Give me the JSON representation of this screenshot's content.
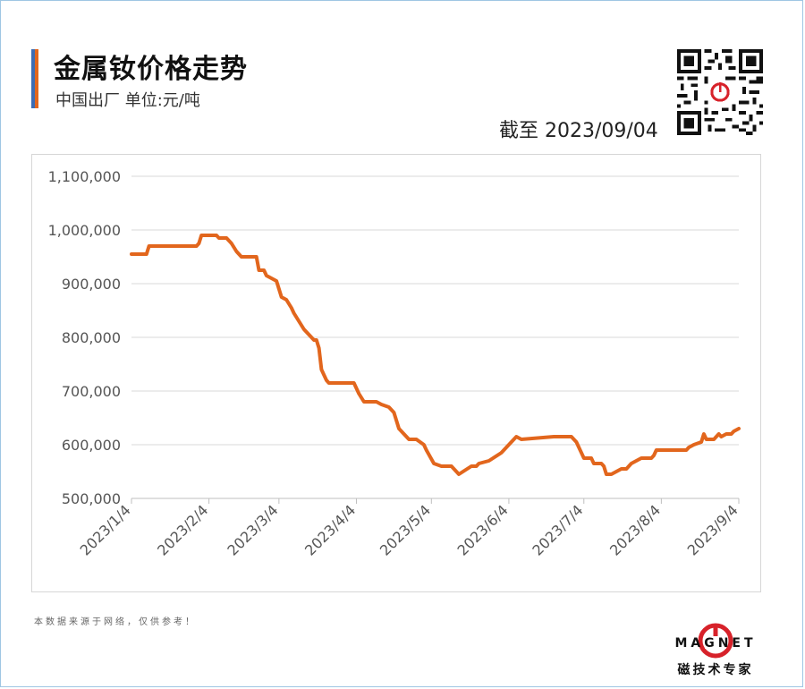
{
  "header": {
    "title": "金属钕价格走势",
    "subtitle": "中国出厂  单位:元/吨",
    "date": "截至 2023/09/04"
  },
  "footer": {
    "note": "本数据来源于网络，仅供参考！",
    "logo_text": "MAGNET",
    "logo_cn": "磁技术专家"
  },
  "colors": {
    "line": "#e2661d",
    "bar_blue": "#3d6cb3",
    "bar_orange": "#e2661d",
    "logo_red": "#d7222a"
  },
  "chart_data": {
    "type": "line",
    "title": "",
    "xlabel": "",
    "ylabel": "",
    "ylim": [
      500000,
      1100000
    ],
    "y_ticks": [
      500000,
      600000,
      700000,
      800000,
      900000,
      1000000,
      1100000
    ],
    "y_tick_labels": [
      "500,000",
      "600,000",
      "700,000",
      "800,000",
      "900,000",
      "1,000,000",
      "1,100,000"
    ],
    "x_range": [
      "2023-01-04",
      "2023-09-04"
    ],
    "x_ticks": [
      "2023-01-04",
      "2023-02-04",
      "2023-03-04",
      "2023-04-04",
      "2023-05-04",
      "2023-06-04",
      "2023-07-04",
      "2023-08-04",
      "2023-09-04"
    ],
    "x_tick_labels": [
      "2023/1/4",
      "2023/2/4",
      "2023/3/4",
      "2023/4/4",
      "2023/5/4",
      "2023/6/4",
      "2023/7/4",
      "2023/8/4",
      "2023/9/4"
    ],
    "grid": "horizontal",
    "series": [
      {
        "x": [
          "2023-01-04",
          "2023-01-10",
          "2023-01-11",
          "2023-01-16",
          "2023-01-20",
          "2023-01-25",
          "2023-01-30",
          "2023-01-31",
          "2023-02-01",
          "2023-02-03",
          "2023-02-07",
          "2023-02-08",
          "2023-02-11",
          "2023-02-13",
          "2023-02-15",
          "2023-02-17",
          "2023-02-19",
          "2023-02-23",
          "2023-02-24",
          "2023-02-26",
          "2023-02-27",
          "2023-03-01",
          "2023-03-03",
          "2023-03-05",
          "2023-03-07",
          "2023-03-09",
          "2023-03-10",
          "2023-03-12",
          "2023-03-14",
          "2023-03-15",
          "2023-03-18",
          "2023-03-19",
          "2023-03-20",
          "2023-03-21",
          "2023-03-23",
          "2023-03-24",
          "2023-03-26",
          "2023-03-30",
          "2023-04-03",
          "2023-04-05",
          "2023-04-07",
          "2023-04-12",
          "2023-04-14",
          "2023-04-17",
          "2023-04-19",
          "2023-04-20",
          "2023-04-21",
          "2023-04-23",
          "2023-04-25",
          "2023-04-27",
          "2023-04-28",
          "2023-05-01",
          "2023-05-02",
          "2023-05-05",
          "2023-05-08",
          "2023-05-12",
          "2023-05-15",
          "2023-05-20",
          "2023-05-22",
          "2023-05-23",
          "2023-05-27",
          "2023-06-01",
          "2023-06-04",
          "2023-06-07",
          "2023-06-09",
          "2023-06-22",
          "2023-06-25",
          "2023-06-27",
          "2023-06-29",
          "2023-07-01",
          "2023-07-04",
          "2023-07-05",
          "2023-07-07",
          "2023-07-08",
          "2023-07-11",
          "2023-07-12",
          "2023-07-13",
          "2023-07-15",
          "2023-07-17",
          "2023-07-19",
          "2023-07-21",
          "2023-07-23",
          "2023-07-25",
          "2023-07-27",
          "2023-07-31",
          "2023-08-01",
          "2023-08-02",
          "2023-08-04",
          "2023-08-10",
          "2023-08-14",
          "2023-08-15",
          "2023-08-17",
          "2023-08-20",
          "2023-08-21",
          "2023-08-22",
          "2023-08-23",
          "2023-08-25",
          "2023-08-27",
          "2023-08-28",
          "2023-08-30",
          "2023-09-01",
          "2023-09-02",
          "2023-09-04"
        ],
        "y": [
          955000,
          955000,
          970000,
          970000,
          970000,
          970000,
          970000,
          975000,
          990000,
          990000,
          990000,
          985000,
          985000,
          975000,
          960000,
          950000,
          950000,
          950000,
          925000,
          925000,
          915000,
          910000,
          905000,
          875000,
          870000,
          855000,
          845000,
          830000,
          815000,
          810000,
          795000,
          795000,
          780000,
          740000,
          720000,
          715000,
          715000,
          715000,
          715000,
          695000,
          680000,
          680000,
          675000,
          670000,
          660000,
          645000,
          630000,
          620000,
          610000,
          610000,
          610000,
          600000,
          590000,
          565000,
          560000,
          560000,
          545000,
          560000,
          560000,
          565000,
          570000,
          585000,
          600000,
          615000,
          610000,
          615000,
          615000,
          615000,
          615000,
          605000,
          575000,
          575000,
          575000,
          565000,
          565000,
          560000,
          545000,
          545000,
          550000,
          555000,
          555000,
          565000,
          570000,
          575000,
          575000,
          580000,
          590000,
          590000,
          590000,
          590000,
          595000,
          600000,
          605000,
          620000,
          610000,
          610000,
          610000,
          620000,
          615000,
          620000,
          620000,
          625000,
          630000
        ]
      }
    ]
  }
}
